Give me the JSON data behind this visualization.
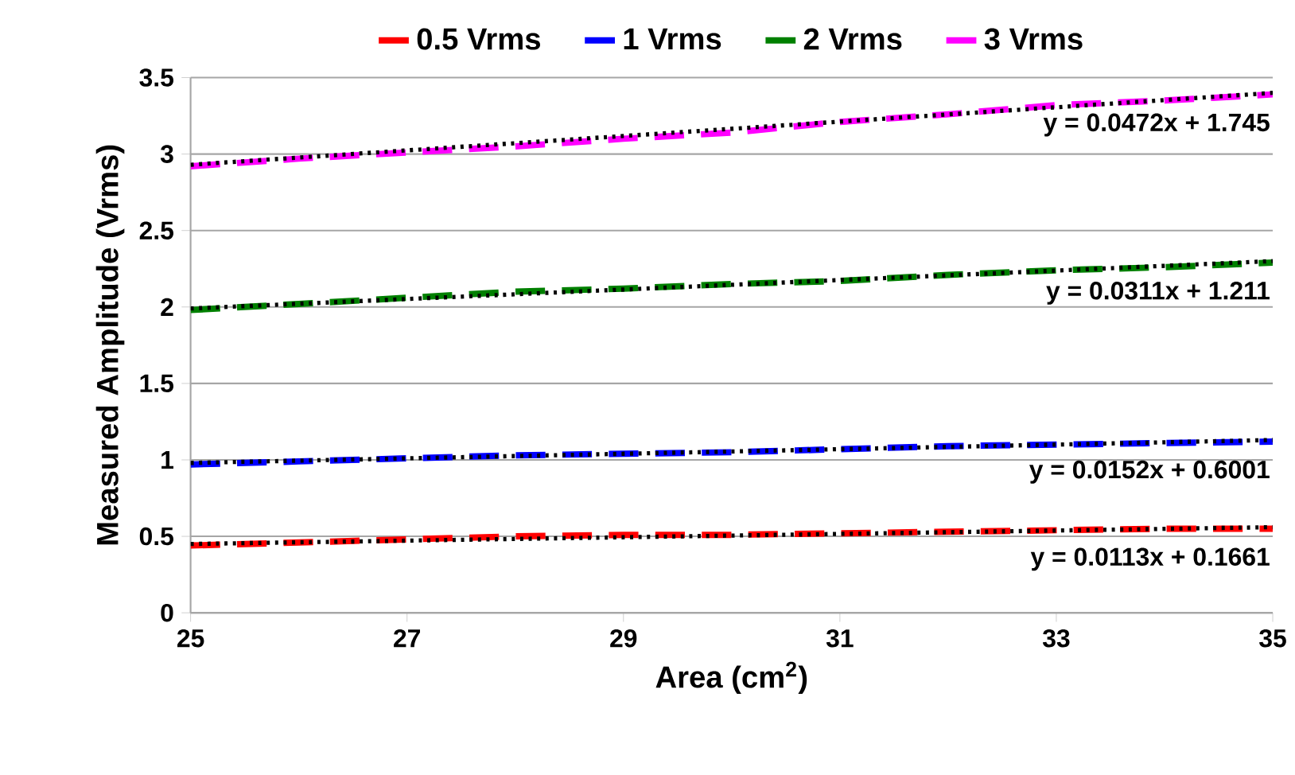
{
  "chart_data": {
    "type": "line",
    "xlabel": "Area (cm$^{2}$)",
    "ylabel": "Measured Amplitude (Vrms)",
    "xlim": [
      25,
      35
    ],
    "xticks": [
      25,
      27,
      29,
      31,
      33,
      35
    ],
    "ylim": [
      0,
      3.5
    ],
    "yticks": [
      0,
      0.5,
      1,
      1.5,
      2,
      2.5,
      3,
      3.5
    ],
    "grid": "y",
    "legend": "top",
    "marker": "none",
    "series": [
      {
        "name": "0.5 Vrms",
        "color": "#ff0000",
        "line_style": "dashed",
        "x": [
          25,
          26,
          27,
          28,
          29,
          30,
          31,
          32,
          33,
          34,
          35
        ],
        "values": [
          0.44,
          0.46,
          0.48,
          0.5,
          0.51,
          0.51,
          0.52,
          0.53,
          0.54,
          0.55,
          0.55
        ]
      },
      {
        "name": "1 Vrms",
        "color": "#0000ff",
        "line_style": "dashed",
        "x": [
          25,
          26,
          27,
          28,
          29,
          30,
          31,
          32,
          33,
          34,
          35
        ],
        "values": [
          0.97,
          0.99,
          1.01,
          1.03,
          1.04,
          1.05,
          1.07,
          1.09,
          1.1,
          1.11,
          1.12
        ]
      },
      {
        "name": "2 Vrms",
        "color": "#008000",
        "line_style": "dashed",
        "x": [
          25,
          26,
          27,
          28,
          29,
          30,
          31,
          32,
          33,
          34,
          35
        ],
        "values": [
          1.98,
          2.02,
          2.06,
          2.1,
          2.12,
          2.15,
          2.17,
          2.21,
          2.24,
          2.26,
          2.29
        ]
      },
      {
        "name": "3 Vrms",
        "color": "#ff00ff",
        "line_style": "dashed",
        "x": [
          25,
          26,
          27,
          28,
          29,
          30,
          31,
          32,
          33,
          34,
          35
        ],
        "values": [
          2.92,
          2.97,
          3.01,
          3.05,
          3.1,
          3.14,
          3.21,
          3.26,
          3.32,
          3.35,
          3.39
        ]
      },
      {
        "color": "#000000",
        "line_style": "dotted",
        "x": [
          25,
          35
        ],
        "values": [
          0.45,
          0.56
        ]
      },
      {
        "color": "#000000",
        "line_style": "dotted",
        "x": [
          25,
          35
        ],
        "values": [
          0.98,
          1.13
        ]
      },
      {
        "color": "#000000",
        "line_style": "dotted",
        "x": [
          25,
          35
        ],
        "values": [
          1.99,
          2.3
        ]
      },
      {
        "color": "#000000",
        "line_style": "dotted",
        "x": [
          25,
          35
        ],
        "values": [
          2.93,
          3.4
        ]
      }
    ],
    "annotations": [
      "y = 0.0472x  + 1.745",
      "y = 0.0311x  + 1.211",
      "y = 0.0152x  + 0.6001",
      "y = 0.0113x  + 0.1661"
    ]
  }
}
